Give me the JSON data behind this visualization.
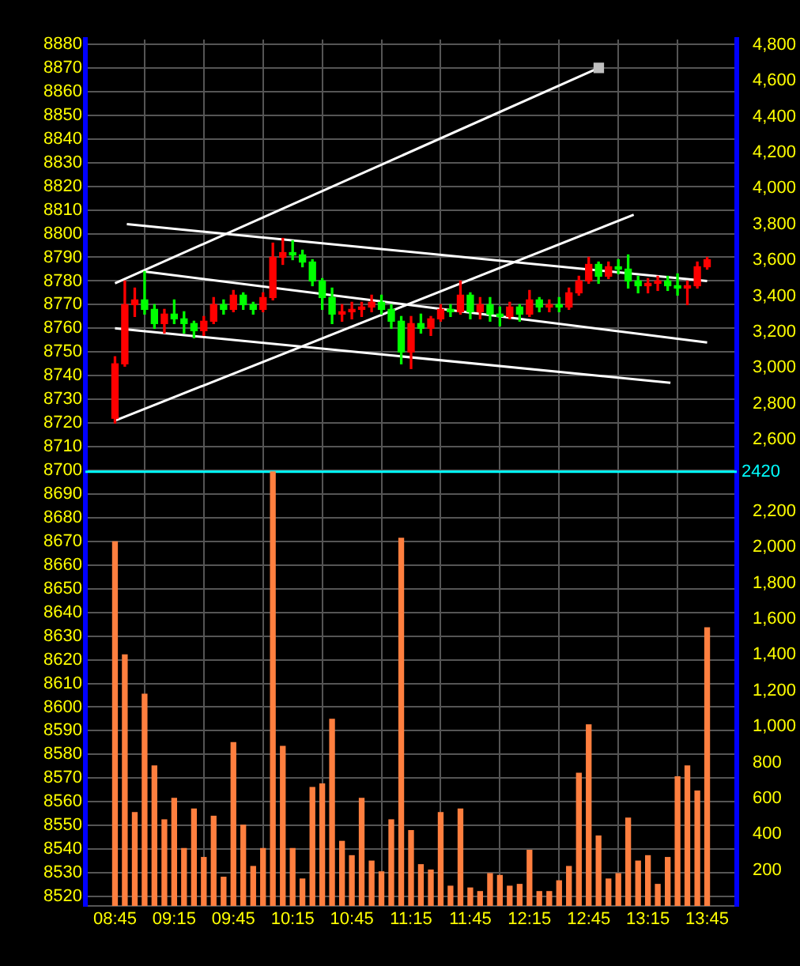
{
  "chart_data": {
    "type": "candlestick",
    "x": [
      8.75,
      8.833,
      8.917,
      9,
      9.083,
      9.167,
      9.25,
      9.333,
      9.417,
      9.5,
      9.583,
      9.667,
      9.75,
      9.833,
      9.917,
      10,
      10.083,
      10.167,
      10.25,
      10.333,
      10.417,
      10.5,
      10.583,
      10.667,
      10.75,
      10.833,
      10.917,
      11,
      11.083,
      11.167,
      11.25,
      11.333,
      11.417,
      11.5,
      11.583,
      11.667,
      11.75,
      11.833,
      11.917,
      12,
      12.083,
      12.167,
      12.25,
      12.333,
      12.417,
      12.5,
      12.583,
      12.667,
      12.75,
      12.833,
      12.917,
      13,
      13.083,
      13.167,
      13.25,
      13.333,
      13.417,
      13.5,
      13.583,
      13.667,
      13.75
    ],
    "ohlc": [
      [
        8722,
        8748,
        8720,
        8745
      ],
      [
        8745,
        8780,
        8744,
        8770
      ],
      [
        8770,
        8777,
        8765,
        8772
      ],
      [
        8772,
        8784,
        8766,
        8768
      ],
      [
        8768,
        8770,
        8760,
        8762
      ],
      [
        8762,
        8768,
        8758,
        8766
      ],
      [
        8766,
        8772,
        8762,
        8764
      ],
      [
        8764,
        8767,
        8758,
        8762
      ],
      [
        8762,
        8763,
        8756,
        8759
      ],
      [
        8759,
        8765,
        8757,
        8763
      ],
      [
        8763,
        8773,
        8762,
        8770
      ],
      [
        8770,
        8772,
        8766,
        8768
      ],
      [
        8768,
        8776,
        8767,
        8774
      ],
      [
        8774,
        8775,
        8768,
        8770
      ],
      [
        8770,
        8771,
        8766,
        8768
      ],
      [
        8768,
        8775,
        8767,
        8773
      ],
      [
        8773,
        8796,
        8772,
        8790
      ],
      [
        8790,
        8798,
        8787,
        8792
      ],
      [
        8792,
        8797,
        8789,
        8791
      ],
      [
        8791,
        8793,
        8786,
        8788
      ],
      [
        8788,
        8789,
        8778,
        8780
      ],
      [
        8780,
        8781,
        8768,
        8773
      ],
      [
        8773,
        8777,
        8762,
        8766
      ],
      [
        8766,
        8770,
        8763,
        8767
      ],
      [
        8767,
        8771,
        8764,
        8768
      ],
      [
        8768,
        8771,
        8765,
        8769
      ],
      [
        8769,
        8774,
        8767,
        8771
      ],
      [
        8771,
        8774,
        8766,
        8768
      ],
      [
        8768,
        8770,
        8760,
        8763
      ],
      [
        8763,
        8765,
        8745,
        8750
      ],
      [
        8750,
        8765,
        8743,
        8762
      ],
      [
        8762,
        8766,
        8758,
        8760
      ],
      [
        8760,
        8765,
        8757,
        8764
      ],
      [
        8764,
        8770,
        8763,
        8768
      ],
      [
        8768,
        8770,
        8765,
        8767
      ],
      [
        8767,
        8780,
        8766,
        8774
      ],
      [
        8774,
        8775,
        8764,
        8767
      ],
      [
        8767,
        8773,
        8764,
        8770
      ],
      [
        8770,
        8773,
        8763,
        8766
      ],
      [
        8766,
        8769,
        8761,
        8765
      ],
      [
        8765,
        8771,
        8764,
        8769
      ],
      [
        8769,
        8770,
        8763,
        8766
      ],
      [
        8766,
        8776,
        8765,
        8772
      ],
      [
        8772,
        8773,
        8767,
        8769
      ],
      [
        8769,
        8772,
        8767,
        8770
      ],
      [
        8770,
        8773,
        8767,
        8769
      ],
      [
        8769,
        8777,
        8768,
        8775
      ],
      [
        8775,
        8782,
        8774,
        8780
      ],
      [
        8780,
        8790,
        8779,
        8787
      ],
      [
        8787,
        8788,
        8779,
        8782
      ],
      [
        8782,
        8788,
        8781,
        8786
      ],
      [
        8786,
        8789,
        8783,
        8785
      ],
      [
        8785,
        8791,
        8777,
        8780
      ],
      [
        8780,
        8782,
        8775,
        8778
      ],
      [
        8778,
        8781,
        8775,
        8779
      ],
      [
        8779,
        8782,
        8776,
        8780
      ],
      [
        8780,
        8782,
        8776,
        8778
      ],
      [
        8778,
        8783,
        8774,
        8777
      ],
      [
        8777,
        8780,
        8770,
        8778
      ],
      [
        8778,
        8788,
        8777,
        8786
      ],
      [
        8786,
        8790,
        8785,
        8789
      ]
    ],
    "colors": [
      "#ff0000",
      "#ff0000",
      "#ff0000",
      "#00ff00",
      "#00ff00",
      "#ff0000",
      "#00ff00",
      "#00ff00",
      "#00ff00",
      "#ff0000",
      "#ff0000",
      "#00ff00",
      "#ff0000",
      "#00ff00",
      "#00ff00",
      "#ff0000",
      "#ff0000",
      "#ff0000",
      "#00ff00",
      "#00ff00",
      "#00ff00",
      "#00ff00",
      "#00ff00",
      "#ff0000",
      "#ff0000",
      "#ff0000",
      "#ff0000",
      "#00ff00",
      "#00ff00",
      "#00ff00",
      "#ff0000",
      "#00ff00",
      "#ff0000",
      "#ff0000",
      "#00ff00",
      "#ff0000",
      "#00ff00",
      "#ff0000",
      "#00ff00",
      "#00ff00",
      "#ff0000",
      "#00ff00",
      "#ff0000",
      "#00ff00",
      "#ff0000",
      "#00ff00",
      "#ff0000",
      "#ff0000",
      "#ff0000",
      "#00ff00",
      "#ff0000",
      "#00ff00",
      "#00ff00",
      "#00ff00",
      "#ff0000",
      "#ff0000",
      "#00ff00",
      "#00ff00",
      "#ff0000",
      "#ff0000",
      "#ff0000"
    ],
    "series": [
      {
        "type": "bar",
        "axis": "y2",
        "color": "#ff7f3f",
        "values": [
          2030,
          1400,
          520,
          1180,
          780,
          480,
          600,
          320,
          540,
          270,
          500,
          160,
          910,
          450,
          220,
          320,
          2420,
          890,
          320,
          150,
          660,
          680,
          1040,
          360,
          280,
          600,
          250,
          190,
          480,
          2050,
          420,
          230,
          200,
          520,
          110,
          540,
          100,
          80,
          180,
          170,
          110,
          120,
          310,
          80,
          80,
          140,
          220,
          740,
          1010,
          390,
          150,
          180,
          490,
          250,
          280,
          120,
          270,
          720,
          780,
          640,
          1550
        ]
      },
      {
        "type": "line",
        "color": "#ffffff",
        "x": [
          8.75,
          12.835
        ],
        "values": [
          8779,
          8870
        ]
      },
      {
        "type": "line",
        "color": "#ffffff",
        "x": [
          8.75,
          13.13
        ],
        "values": [
          8721,
          8808
        ]
      },
      {
        "type": "line",
        "color": "#ffffff",
        "x": [
          8.85,
          13.75
        ],
        "values": [
          8804,
          8780
        ]
      },
      {
        "type": "line",
        "color": "#ffffff",
        "x": [
          9,
          13.75
        ],
        "values": [
          8784,
          8754
        ]
      },
      {
        "type": "line",
        "color": "#ffffff",
        "x": [
          8.75,
          13.44
        ],
        "values": [
          8760,
          8737
        ]
      },
      {
        "type": "scatter",
        "marker": "square",
        "color": "#c0c0c0",
        "x": [
          12.835
        ],
        "values": [
          8870
        ]
      }
    ],
    "xlim": [
      8.75,
      13.75
    ],
    "xticks": [
      {
        "value": 8.75,
        "label": "08:45"
      },
      {
        "value": 9.25,
        "label": "09:15"
      },
      {
        "value": 9.75,
        "label": "09:45"
      },
      {
        "value": 10.25,
        "label": "10:15"
      },
      {
        "value": 10.75,
        "label": "10:45"
      },
      {
        "value": 11.25,
        "label": "11:15"
      },
      {
        "value": 11.75,
        "label": "11:45"
      },
      {
        "value": 12.25,
        "label": "12:15"
      },
      {
        "value": 12.75,
        "label": "12:45"
      },
      {
        "value": 13.25,
        "label": "13:15"
      },
      {
        "value": 13.75,
        "label": "13:45"
      }
    ],
    "ylim": [
      8516,
      8882
    ],
    "yticks": [
      8520,
      8530,
      8540,
      8550,
      8560,
      8570,
      8580,
      8590,
      8600,
      8610,
      8620,
      8630,
      8640,
      8650,
      8660,
      8670,
      8680,
      8690,
      8700,
      8710,
      8720,
      8730,
      8740,
      8750,
      8760,
      8770,
      8780,
      8790,
      8800,
      8810,
      8820,
      8830,
      8840,
      8850,
      8860,
      8870,
      8880
    ],
    "y2lim": [
      0,
      4830
    ],
    "y2ticks": [
      200,
      400,
      600,
      800,
      {
        "value": 1000,
        "label": "1,000"
      },
      {
        "value": 1200,
        "label": "1,200"
      },
      {
        "value": 1400,
        "label": "1,400"
      },
      {
        "value": 1600,
        "label": "1,600"
      },
      {
        "value": 1800,
        "label": "1,800"
      },
      {
        "value": 2000,
        "label": "2,000"
      },
      {
        "value": 2200,
        "label": "2,200"
      },
      {
        "value": 2600,
        "label": "2,600"
      },
      {
        "value": 2800,
        "label": "2,800"
      },
      {
        "value": 3000,
        "label": "3,000"
      },
      {
        "value": 3200,
        "label": "3,200"
      },
      {
        "value": 3400,
        "label": "3,400"
      },
      {
        "value": 3600,
        "label": "3,600"
      },
      {
        "value": 3800,
        "label": "3,800"
      },
      {
        "value": 4000,
        "label": "4,000"
      },
      {
        "value": 4200,
        "label": "4,200"
      },
      {
        "value": 4400,
        "label": "4,400"
      },
      {
        "value": 4600,
        "label": "4,600"
      },
      {
        "value": 4800,
        "label": "4,800"
      }
    ],
    "ref_lines": [
      {
        "axis": "y2",
        "value": 2420,
        "label": "2420",
        "color": "#00ffff"
      }
    ],
    "grid": true,
    "legend": false
  }
}
